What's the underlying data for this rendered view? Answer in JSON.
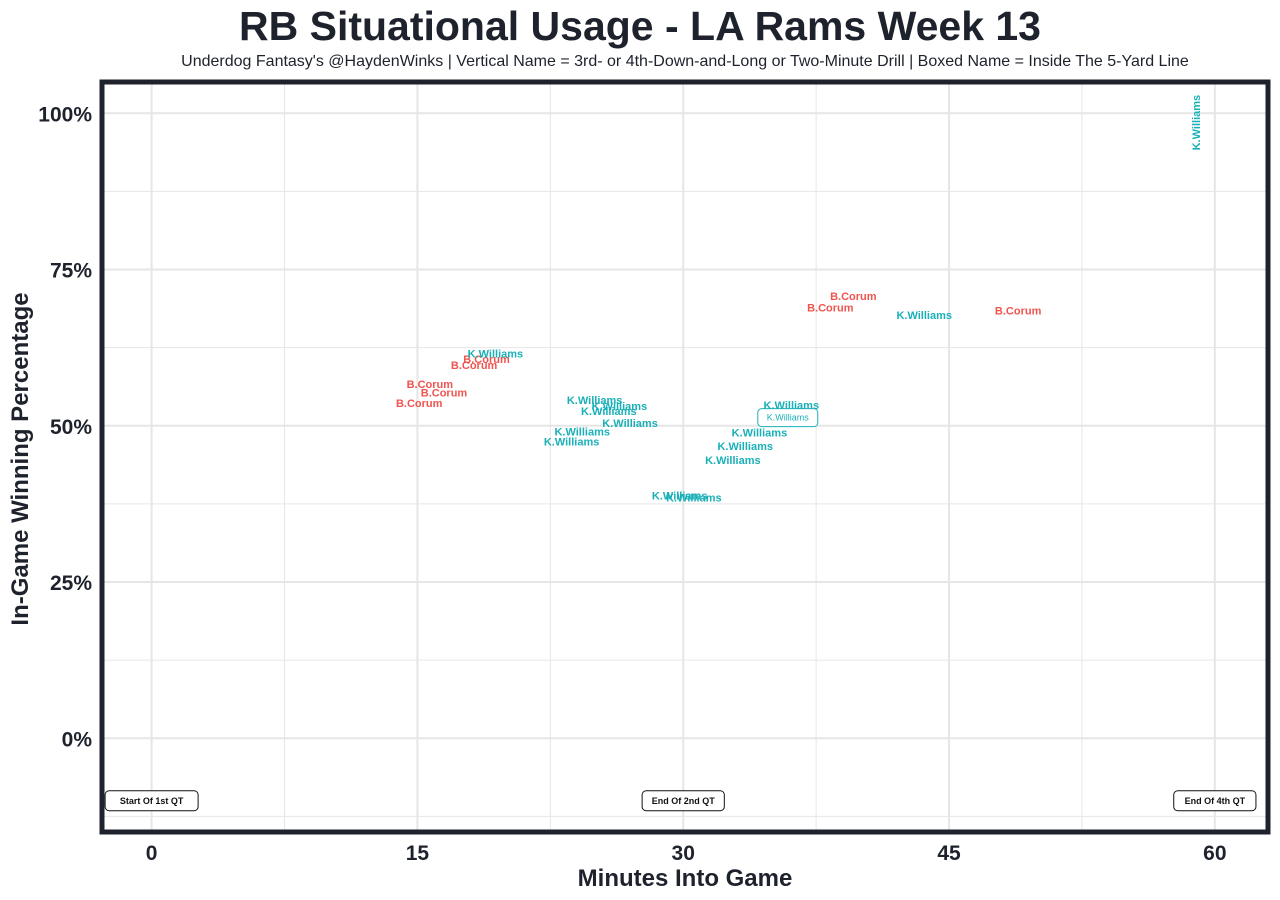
{
  "chart_data": {
    "type": "scatter",
    "title": "RB Situational Usage - LA Rams Week 13",
    "subtitle": "Underdog Fantasy's @HaydenWinks | Vertical Name = 3rd- or 4th-Down-and-Long or Two-Minute Drill | Boxed Name = Inside The 5-Yard Line",
    "xlabel": "Minutes Into Game",
    "ylabel": "In-Game Winning Percentage",
    "xlim": [
      -2.8,
      63
    ],
    "ylim": [
      -15,
      105
    ],
    "x_ticks": [
      {
        "value": 0,
        "label": "0"
      },
      {
        "value": 15,
        "label": "15"
      },
      {
        "value": 30,
        "label": "30"
      },
      {
        "value": 45,
        "label": "45"
      },
      {
        "value": 60,
        "label": "60"
      }
    ],
    "y_ticks": [
      {
        "value": 0,
        "label": "0%"
      },
      {
        "value": 25,
        "label": "25%"
      },
      {
        "value": 50,
        "label": "50%"
      },
      {
        "value": 75,
        "label": "75%"
      },
      {
        "value": 100,
        "label": "100%"
      }
    ],
    "grid": true,
    "legend": "none",
    "colors": {
      "B.Corum": "#f0544f",
      "K.Williams": "#1ab0b8",
      "frame": "#1e222c",
      "grid": "#e6e6e6"
    },
    "points": [
      {
        "player": "B.Corum",
        "x": 15.7,
        "y": 56.5,
        "style": "normal"
      },
      {
        "player": "B.Corum",
        "x": 16.5,
        "y": 55.2,
        "style": "normal"
      },
      {
        "player": "B.Corum",
        "x": 15.1,
        "y": 53.5,
        "style": "normal"
      },
      {
        "player": "B.Corum",
        "x": 18.9,
        "y": 60.5,
        "style": "normal"
      },
      {
        "player": "B.Corum",
        "x": 18.2,
        "y": 59.6,
        "style": "normal"
      },
      {
        "player": "K.Williams",
        "x": 19.4,
        "y": 61.4,
        "style": "normal"
      },
      {
        "player": "K.Williams",
        "x": 25.0,
        "y": 54.0,
        "style": "normal"
      },
      {
        "player": "K.Williams",
        "x": 26.4,
        "y": 53.0,
        "style": "normal"
      },
      {
        "player": "K.Williams",
        "x": 25.8,
        "y": 52.2,
        "style": "normal"
      },
      {
        "player": "K.Williams",
        "x": 27.0,
        "y": 50.3,
        "style": "normal"
      },
      {
        "player": "K.Williams",
        "x": 24.3,
        "y": 48.9,
        "style": "normal"
      },
      {
        "player": "K.Williams",
        "x": 23.7,
        "y": 47.3,
        "style": "normal"
      },
      {
        "player": "K.Williams",
        "x": 29.8,
        "y": 38.7,
        "style": "normal"
      },
      {
        "player": "K.Williams",
        "x": 30.6,
        "y": 38.4,
        "style": "normal"
      },
      {
        "player": "K.Williams",
        "x": 36.1,
        "y": 53.2,
        "style": "normal"
      },
      {
        "player": "K.Williams",
        "x": 35.9,
        "y": 51.3,
        "style": "boxed"
      },
      {
        "player": "K.Williams",
        "x": 34.3,
        "y": 48.8,
        "style": "normal"
      },
      {
        "player": "K.Williams",
        "x": 33.5,
        "y": 46.6,
        "style": "normal"
      },
      {
        "player": "K.Williams",
        "x": 32.8,
        "y": 44.4,
        "style": "normal"
      },
      {
        "player": "B.Corum",
        "x": 39.6,
        "y": 70.6,
        "style": "normal"
      },
      {
        "player": "B.Corum",
        "x": 38.3,
        "y": 68.8,
        "style": "normal"
      },
      {
        "player": "K.Williams",
        "x": 43.6,
        "y": 67.6,
        "style": "normal"
      },
      {
        "player": "B.Corum",
        "x": 48.9,
        "y": 68.3,
        "style": "normal"
      },
      {
        "player": "K.Williams",
        "x": 59.0,
        "y": 98.5,
        "style": "vertical"
      }
    ],
    "annotations": [
      {
        "text": "Start Of 1st QT",
        "x": 0,
        "y": -10
      },
      {
        "text": "End Of 2nd QT",
        "x": 30,
        "y": -10
      },
      {
        "text": "End Of 4th QT",
        "x": 60,
        "y": -10
      }
    ]
  }
}
